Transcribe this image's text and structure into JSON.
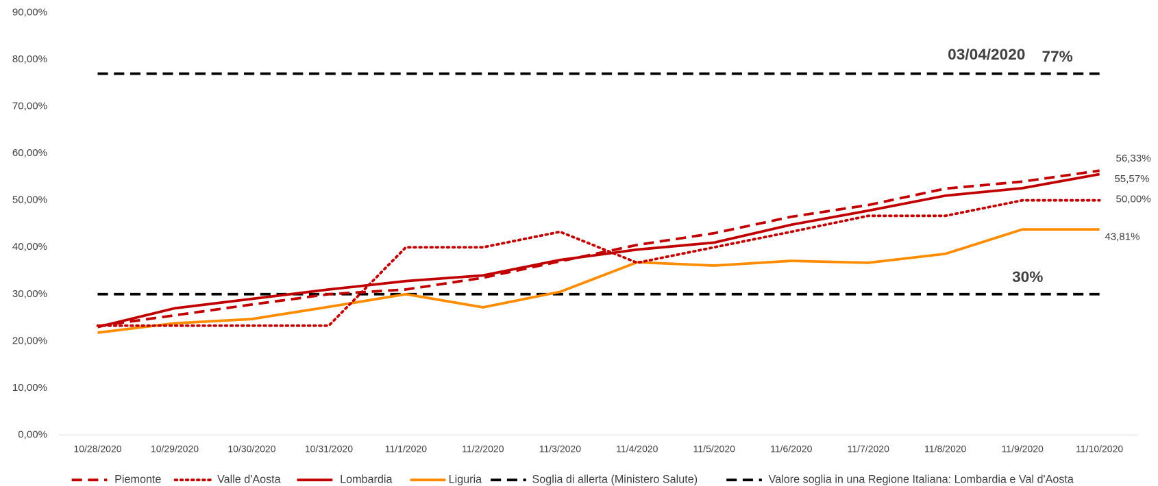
{
  "chart_data": {
    "type": "line",
    "categories": [
      "10/28/2020",
      "10/29/2020",
      "10/30/2020",
      "10/31/2020",
      "11/1/2020",
      "11/2/2020",
      "11/3/2020",
      "11/4/2020",
      "11/5/2020",
      "11/6/2020",
      "11/7/2020",
      "11/8/2020",
      "11/9/2020",
      "11/10/2020"
    ],
    "ylim": [
      0,
      90
    ],
    "yticks": [
      {
        "value": 0,
        "label": "0,00%"
      },
      {
        "value": 10,
        "label": "10,00%"
      },
      {
        "value": 20,
        "label": "20,00%"
      },
      {
        "value": 30,
        "label": "30,00%"
      },
      {
        "value": 40,
        "label": "40,00%"
      },
      {
        "value": 50,
        "label": "50,00%"
      },
      {
        "value": 60,
        "label": "60,00%"
      },
      {
        "value": 70,
        "label": "70,00%"
      },
      {
        "value": 80,
        "label": "80,00%"
      },
      {
        "value": 90,
        "label": "90,00%"
      }
    ],
    "annotations": [
      "03/04/2020"
    ],
    "series": [
      {
        "name": "Piemonte",
        "color": "#c00000",
        "style": "dashed",
        "values": [
          23.2,
          25.5,
          27.8,
          30.0,
          31.0,
          33.5,
          37.0,
          40.5,
          43.0,
          46.5,
          49.0,
          52.5,
          54.0,
          56.33
        ],
        "value_labels": [
          null,
          null,
          null,
          null,
          null,
          null,
          null,
          null,
          null,
          null,
          null,
          null,
          null,
          "56,33%"
        ]
      },
      {
        "name": "Valle d'Aosta",
        "color": "#c00000",
        "style": "dotted",
        "values": [
          23.3,
          23.3,
          23.3,
          23.3,
          40.0,
          40.0,
          43.3,
          36.7,
          40.0,
          43.3,
          46.7,
          46.7,
          50.0,
          50.0
        ],
        "value_labels": [
          null,
          null,
          null,
          null,
          null,
          null,
          null,
          null,
          null,
          null,
          null,
          null,
          null,
          "50,00%"
        ]
      },
      {
        "name": "Lombardia",
        "color": "#c00000",
        "style": "solid",
        "values": [
          23.0,
          27.0,
          29.0,
          31.0,
          32.8,
          34.0,
          37.3,
          39.5,
          41.0,
          44.8,
          47.8,
          51.0,
          52.6,
          55.57
        ],
        "value_labels": [
          null,
          null,
          null,
          null,
          null,
          null,
          null,
          null,
          null,
          null,
          null,
          null,
          null,
          "55,57%"
        ]
      },
      {
        "name": "Liguria",
        "color": "#ff8c00",
        "style": "solid",
        "values": [
          21.8,
          23.8,
          24.7,
          27.3,
          30.0,
          27.2,
          30.5,
          36.8,
          36.1,
          37.1,
          36.7,
          38.6,
          43.81,
          43.81
        ],
        "value_labels": [
          null,
          null,
          null,
          null,
          null,
          null,
          null,
          null,
          null,
          null,
          null,
          null,
          null,
          "43,81%"
        ]
      },
      {
        "name": "Soglia di allerta (Ministero Salute)",
        "color": "#000000",
        "style": "dashed",
        "values": [
          30,
          30,
          30,
          30,
          30,
          30,
          30,
          30,
          30,
          30,
          30,
          30,
          30,
          30
        ],
        "value_labels": [
          null,
          null,
          null,
          null,
          null,
          null,
          null,
          null,
          null,
          null,
          null,
          null,
          "30%",
          null
        ]
      },
      {
        "name": "Valore soglia in una Regione Italiana: Lombardia e Val d'Aosta",
        "color": "#000000",
        "style": "dashed",
        "values": [
          77,
          77,
          77,
          77,
          77,
          77,
          77,
          77,
          77,
          77,
          77,
          77,
          77,
          77
        ],
        "value_labels": [
          null,
          null,
          null,
          null,
          null,
          null,
          null,
          null,
          null,
          null,
          null,
          null,
          null,
          "77%"
        ]
      }
    ]
  }
}
